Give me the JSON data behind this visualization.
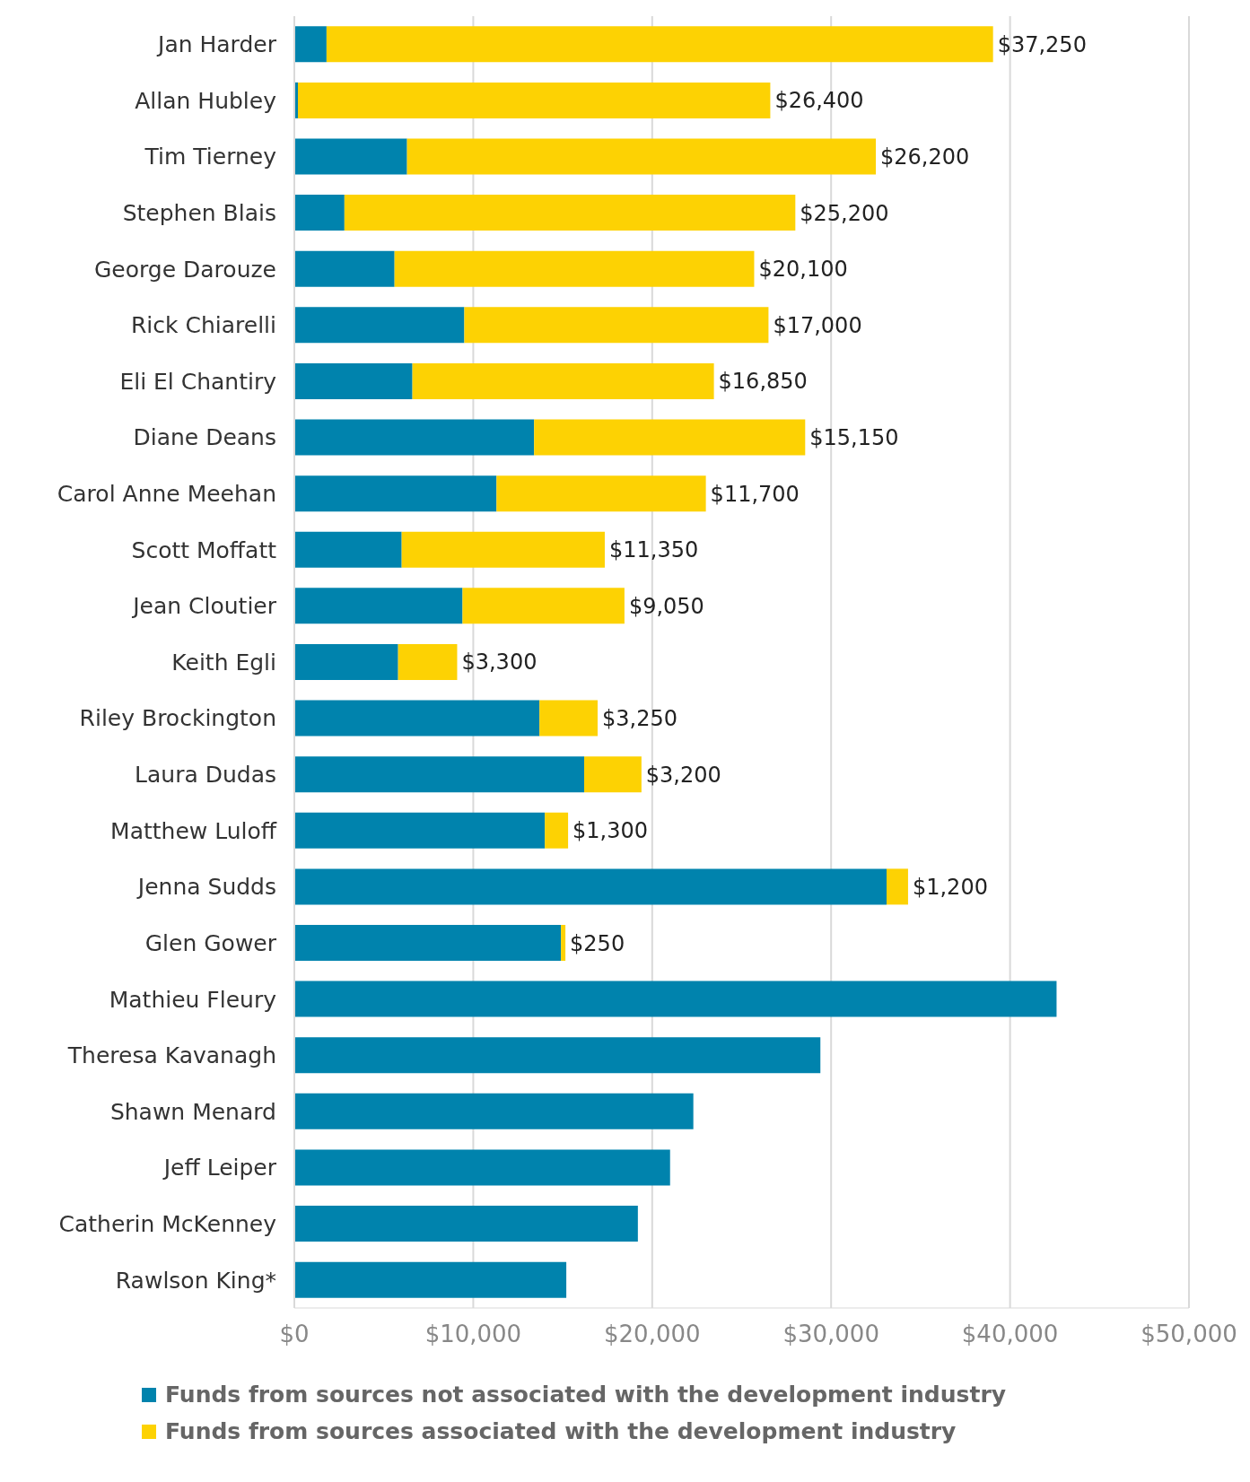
{
  "chart_data": {
    "type": "bar",
    "orientation": "horizontal",
    "stacked": true,
    "categories": [
      "Jan Harder",
      "Allan Hubley",
      "Tim Tierney",
      "Stephen Blais",
      "George Darouze",
      "Rick Chiarelli",
      "Eli El Chantiry",
      "Diane Deans",
      "Carol Anne Meehan",
      "Scott Moffatt",
      "Jean Cloutier",
      "Keith Egli",
      "Riley Brockington",
      "Laura Dudas",
      "Matthew Luloff",
      "Jenna Sudds",
      "Glen Gower",
      "Mathieu Fleury",
      "Theresa Kavanagh",
      "Shawn Menard",
      "Jeff Leiper",
      "Catherin McKenney",
      "Rawlson King*"
    ],
    "series": [
      {
        "name": "Funds from sources not associated with the development industry",
        "color": "#0083ad",
        "values": [
          1800,
          200,
          6300,
          2800,
          5600,
          9500,
          6600,
          13400,
          11300,
          6000,
          9400,
          5800,
          13700,
          16200,
          14000,
          33100,
          14900,
          42600,
          29400,
          22300,
          21000,
          19200,
          15200
        ]
      },
      {
        "name": "Funds from sources associated with the development industry",
        "color": "#fdd203",
        "values": [
          37250,
          26400,
          26200,
          25200,
          20100,
          17000,
          16850,
          15150,
          11700,
          11350,
          9050,
          3300,
          3250,
          3200,
          1300,
          1200,
          250,
          null,
          null,
          null,
          null,
          null,
          null
        ],
        "value_labels": [
          "$37,250",
          "$26,400",
          "$26,200",
          "$25,200",
          "$20,100",
          "$17,000",
          "$16,850",
          "$15,150",
          "$11,700",
          "$11,350",
          "$9,050",
          "$3,300",
          "$3,250",
          "$3,200",
          "$1,300",
          "$1,200",
          "$250",
          null,
          null,
          null,
          null,
          null,
          null
        ]
      }
    ],
    "xlim": [
      0,
      50000
    ],
    "xticks": [
      {
        "value": 0,
        "label": "$0"
      },
      {
        "value": 10000,
        "label": "$10,000"
      },
      {
        "value": 20000,
        "label": "$20,000"
      },
      {
        "value": 30000,
        "label": "$30,000"
      },
      {
        "value": 40000,
        "label": "$40,000"
      },
      {
        "value": 50000,
        "label": "$50,000"
      }
    ],
    "grid": "x",
    "legend": "bottom"
  }
}
